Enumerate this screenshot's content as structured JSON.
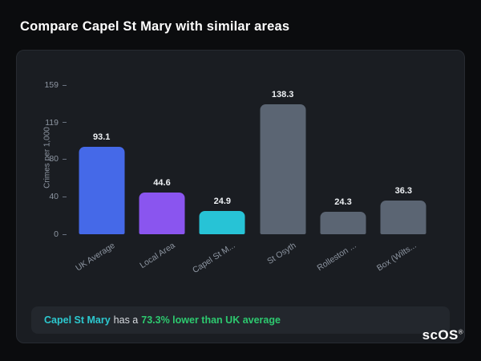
{
  "page": {
    "title": "Compare Capel St Mary with similar areas"
  },
  "chart_data": {
    "type": "bar",
    "categories": [
      "UK Average",
      "Local Area",
      "Capel St M...",
      "St Osyth",
      "Rolleston ...",
      "Box (Wilts..."
    ],
    "values": [
      93.1,
      44.6,
      24.9,
      138.3,
      24.3,
      36.3
    ],
    "bar_colors": [
      "#4569e8",
      "#8a55ef",
      "#27c3d6",
      "#5b6573",
      "#5b6573",
      "#5b6573"
    ],
    "title": "",
    "xlabel": "",
    "ylabel": "Crimes per 1,000",
    "yticks": [
      0,
      40,
      80,
      119,
      159
    ],
    "ylim": [
      0,
      159
    ],
    "grid": false,
    "legend": "none"
  },
  "note": {
    "area": "Capel St Mary",
    "middle": "has a",
    "highlight": "73.3% lower than UK average"
  },
  "logo": {
    "text": "scOS",
    "reg": "®"
  },
  "colors": {
    "background": "#0b0c0e",
    "card": "#1a1d22",
    "note_background": "#23272d",
    "accent_cyan": "#2cc8cf",
    "accent_green": "#2dc96f",
    "accent_blue": "#4569e8",
    "accent_purple": "#8a55ef",
    "neutral_bar": "#5b6573"
  }
}
